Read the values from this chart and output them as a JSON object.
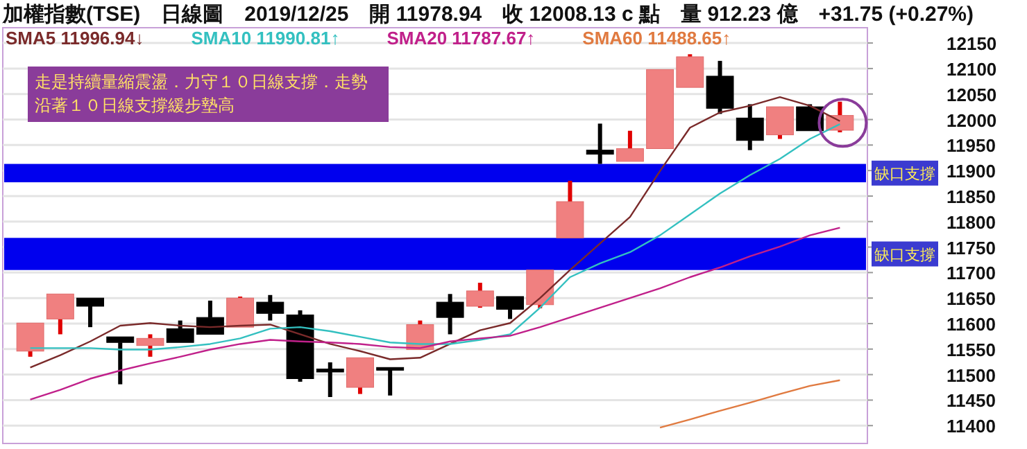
{
  "chart_data": {
    "type": "candlestick",
    "title": "加權指數(TSE)　日線圖　2019/12/25　開 11978.94　收 12008.13 c 點　量 912.23 億　+31.75 (+0.27%)",
    "categories": [
      null,
      null,
      null,
      null,
      null,
      null,
      null,
      null,
      null,
      null,
      null,
      null,
      null,
      null,
      null,
      null,
      null,
      null,
      null,
      null,
      null,
      null,
      null,
      null,
      null,
      null,
      null,
      null
    ],
    "ohlc": [
      [
        11546,
        11601,
        11535,
        11601
      ],
      [
        11609,
        11658,
        11579,
        11658
      ],
      [
        11650,
        11650,
        11593,
        11634
      ],
      [
        11574,
        11574,
        11481,
        11563
      ],
      [
        11557,
        11579,
        11535,
        11571
      ],
      [
        11590,
        11606,
        11563,
        11563
      ],
      [
        11612,
        11645,
        11579,
        11579
      ],
      [
        11593,
        11653,
        11593,
        11650
      ],
      [
        11642,
        11656,
        11606,
        11620
      ],
      [
        11617,
        11626,
        11486,
        11492
      ],
      [
        11511,
        11524,
        11456,
        11505
      ],
      [
        11475,
        11533,
        11462,
        11533
      ],
      [
        11514,
        11514,
        11459,
        11511
      ],
      [
        11549,
        11606,
        11549,
        11598
      ],
      [
        11642,
        11658,
        11579,
        11612
      ],
      [
        11634,
        11680,
        11631,
        11664
      ],
      [
        11653,
        11653,
        11609,
        11628
      ],
      [
        11637,
        11705,
        11630,
        11705
      ],
      [
        11768,
        11880,
        11768,
        11839
      ],
      [
        11940,
        11992,
        11913,
        11932
      ],
      [
        11918,
        11978,
        11918,
        11943
      ],
      [
        11943,
        12098,
        11943,
        12098
      ],
      [
        12063,
        12128,
        12063,
        12123
      ],
      [
        12085,
        12115,
        12011,
        12022
      ],
      [
        12003,
        12030,
        11940,
        11959
      ],
      [
        11970,
        12025,
        11962,
        12025
      ],
      [
        12025,
        12030,
        11978,
        11978
      ],
      [
        11979,
        12035,
        11975,
        12008
      ]
    ],
    "series": [
      {
        "name": "SMA5 11996.94↓",
        "type": "line",
        "color": "#7a2a2a",
        "values": [
          11514,
          11538,
          11565,
          11596,
          11601,
          11596,
          11593,
          11596,
          11598,
          11579,
          11560,
          11546,
          11530,
          11533,
          11560,
          11587,
          11601,
          11650,
          11705,
          11757,
          11809,
          11899,
          11984,
          12014,
          12027,
          12044,
          12027,
          11997
        ]
      },
      {
        "name": "SMA10 11990.81↑",
        "type": "line",
        "color": "#33c0c0",
        "values": [
          11552,
          11552,
          11552,
          11549,
          11549,
          11554,
          11560,
          11571,
          11590,
          11593,
          11585,
          11574,
          11563,
          11560,
          11560,
          11568,
          11579,
          11631,
          11691,
          11718,
          11740,
          11773,
          11814,
          11855,
          11891,
          11923,
          11962,
          11991
        ]
      },
      {
        "name": "SMA20 11787.67↑",
        "type": "line",
        "color": "#c0208a",
        "values": [
          11451,
          11470,
          11492,
          11508,
          11522,
          11535,
          11549,
          11560,
          11568,
          11565,
          11563,
          11560,
          11554,
          11552,
          11565,
          11571,
          11576,
          11593,
          11612,
          11631,
          11650,
          11669,
          11691,
          11710,
          11732,
          11751,
          11773,
          11788
        ]
      },
      {
        "name": "SMA60 11488.65↑",
        "type": "line",
        "color": "#e07a40",
        "values": [
          null,
          null,
          null,
          null,
          null,
          null,
          null,
          null,
          null,
          null,
          null,
          null,
          null,
          null,
          null,
          null,
          null,
          null,
          null,
          null,
          null,
          11396,
          11412,
          11429,
          11445,
          11462,
          11478,
          11489
        ]
      }
    ],
    "bands": [
      {
        "axis": "y",
        "from": 11877,
        "to": 11913,
        "label": "缺口支撐",
        "color": "#0000ee"
      },
      {
        "axis": "y",
        "from": 11705,
        "to": 11768,
        "label": "缺口支撐",
        "color": "#0000ee"
      }
    ],
    "annotations": [
      "走是持續量縮震盪．力守１０日線支撐．走勢沿著１０日線支撐緩步墊高"
    ],
    "ylim": [
      11365,
      12180
    ],
    "yticks": [
      11400,
      11450,
      11500,
      11550,
      11600,
      11650,
      11700,
      11750,
      11800,
      11850,
      11900,
      11950,
      12000,
      12050,
      12100,
      12150
    ],
    "grid": "y",
    "legend": "top left"
  }
}
